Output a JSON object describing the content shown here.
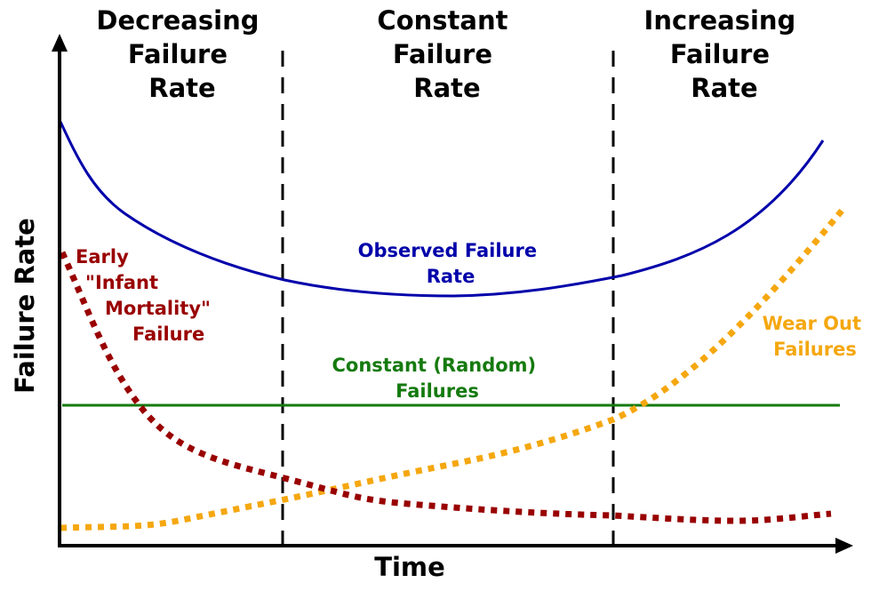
{
  "regions": [
    {
      "title_lines": [
        "Decreasing",
        "Failure",
        "Rate"
      ]
    },
    {
      "title_lines": [
        "Constant",
        "Failure",
        "Rate"
      ]
    },
    {
      "title_lines": [
        "Increasing",
        "Failure",
        "Rate"
      ]
    }
  ],
  "axes": {
    "x_label": "Time",
    "y_label": "Failure Rate"
  },
  "curves": {
    "observed": {
      "label_lines": [
        "Observed Failure",
        "Rate"
      ],
      "color": "#0000aa"
    },
    "constant": {
      "label_lines": [
        "Constant (Random)",
        "Failures"
      ],
      "color": "#157a0e"
    },
    "infant": {
      "label_lines": [
        "Early",
        "\"Infant",
        "Mortality\"",
        "Failure"
      ],
      "color": "#990000"
    },
    "wearout": {
      "label_lines": [
        "Wear Out",
        "Failures"
      ],
      "color": "#f5a70f"
    }
  },
  "colors": {
    "axis": "#000000",
    "divider": "#000000"
  }
}
